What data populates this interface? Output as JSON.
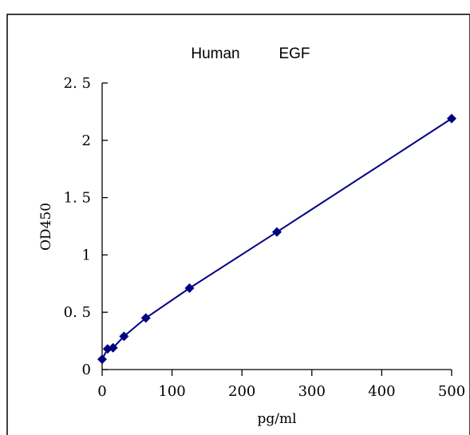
{
  "chart_data": {
    "type": "scatter",
    "title_parts": [
      "Human",
      "EGF"
    ],
    "xlabel": "pg/ml",
    "ylabel": "OD450",
    "xlim": [
      0,
      500
    ],
    "ylim": [
      0,
      2.5
    ],
    "x_ticks": [
      0,
      100,
      200,
      300,
      400,
      500
    ],
    "x_tick_labels": [
      "0",
      "100",
      "200",
      "300",
      "400",
      "500"
    ],
    "y_ticks": [
      0,
      0.5,
      1,
      1.5,
      2,
      2.5
    ],
    "y_tick_labels": [
      "0",
      "0. 5",
      "1",
      "1. 5",
      "2",
      "2. 5"
    ],
    "grid": false,
    "series": [
      {
        "x": [
          0,
          7.8,
          15.6,
          31.25,
          62.5,
          125,
          250,
          500
        ],
        "y": [
          0.09,
          0.18,
          0.19,
          0.29,
          0.45,
          0.71,
          1.2,
          2.19
        ],
        "marker": "diamond",
        "line": true,
        "color": "#000080"
      }
    ]
  }
}
